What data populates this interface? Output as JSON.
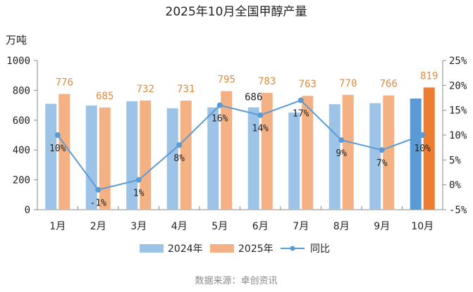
{
  "chart_data": {
    "type": "bar",
    "title": "2025年10月全国甲醇产量",
    "ylabel": "万吨",
    "ylabel_right": "",
    "xlabel": "",
    "categories": [
      "1月",
      "2月",
      "3月",
      "4月",
      "5月",
      "6月",
      "7月",
      "8月",
      "9月",
      "10月"
    ],
    "ylim": [
      0,
      1000
    ],
    "yticks": [
      0,
      200,
      400,
      600,
      800,
      1000
    ],
    "ytick_labels": [
      "0",
      "200",
      "400",
      "600",
      "800",
      "1000"
    ],
    "y2lim": [
      -5,
      25
    ],
    "y2ticks": [
      -5,
      0,
      5,
      10,
      15,
      20,
      25
    ],
    "y2tick_labels": [
      "-5%",
      "0%",
      "5%",
      "10%",
      "15%",
      "20%",
      "25%"
    ],
    "series": [
      {
        "name": "2024年",
        "type": "bar",
        "axis": "left",
        "color": "#9dc3e6",
        "highlight_color": "#5b9bd5",
        "values": [
          710,
          698,
          727,
          680,
          686,
          686,
          651,
          707,
          714,
          745
        ],
        "labels": [
          "",
          "",
          "",
          "",
          "",
          "686",
          "",
          "",
          "",
          ""
        ]
      },
      {
        "name": "2025年",
        "type": "bar",
        "axis": "left",
        "color": "#f4b183",
        "highlight_color": "#ed7d31",
        "values": [
          776,
          685,
          732,
          731,
          795,
          783,
          763,
          770,
          766,
          819
        ],
        "labels": [
          "776",
          "685",
          "732",
          "731",
          "795",
          "783",
          "763",
          "770",
          "766",
          "819"
        ]
      },
      {
        "name": "同比",
        "type": "line",
        "axis": "right",
        "color": "#5b9bd5",
        "values": [
          10,
          -1,
          1,
          8,
          16,
          14,
          17,
          9,
          7,
          10
        ],
        "labels": [
          "10%",
          "-1%",
          "1%",
          "8%",
          "16%",
          "14%",
          "17%",
          "9%",
          "7%",
          "10%"
        ]
      }
    ],
    "legend": "bottom",
    "grid": false
  },
  "source": "数据来源：卓创资讯"
}
